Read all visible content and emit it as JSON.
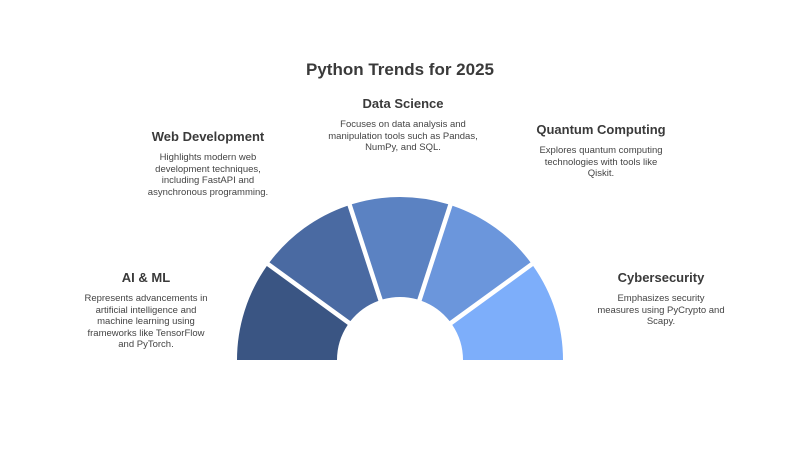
{
  "title": "Python Trends for 2025",
  "segments": [
    {
      "title": "AI & ML",
      "description": "Represents advancements in artificial intelligence and machine learning using frameworks like TensorFlow and PyTorch.",
      "color": "#3a5583"
    },
    {
      "title": "Web Development",
      "description": "Highlights modern web development techniques, including FastAPI and asynchronous programming.",
      "color": "#4a6aa2"
    },
    {
      "title": "Data Science",
      "description": "Focuses on data analysis and manipulation tools such as Pandas, NumPy, and SQL.",
      "color": "#5b82c2"
    },
    {
      "title": "Quantum Computing",
      "description": "Explores quantum computing technologies with tools like Qiskit.",
      "color": "#6b96dc"
    },
    {
      "title": "Cybersecurity",
      "description": "Emphasizes security measures using PyCrypto and Scapy.",
      "color": "#7daefa"
    }
  ]
}
